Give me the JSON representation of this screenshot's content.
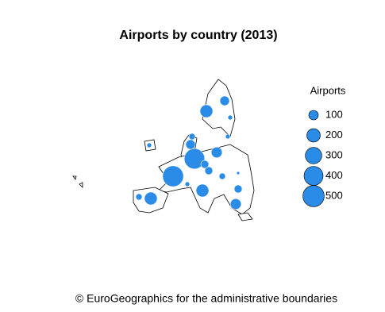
{
  "chart_data": {
    "type": "bubble-map",
    "title": "Airports by country (2013)",
    "legend_title": "Airports",
    "legend_sizes": [
      100,
      200,
      300,
      400,
      500
    ],
    "values": [
      480,
      460,
      180,
      100,
      25,
      25,
      130,
      45,
      100,
      180,
      45,
      180,
      70,
      70,
      130,
      70,
      45,
      25,
      10,
      25
    ],
    "color": "#2b8ce8",
    "source": "© EuroGeographics for the administrative boundaries"
  }
}
